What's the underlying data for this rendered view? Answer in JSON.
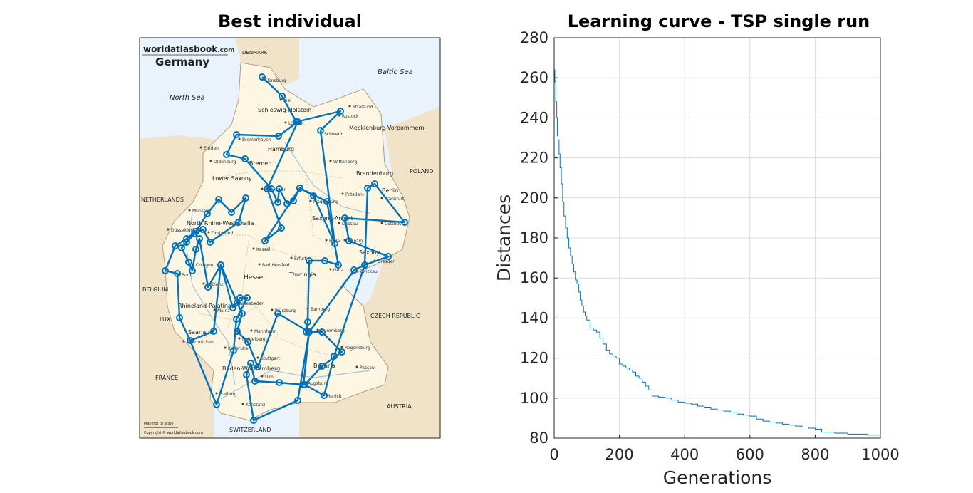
{
  "left_panel": {
    "title": "Best individual",
    "map": {
      "brand": "worldatlasbook.com",
      "brand_bold": "worldatlasbook",
      "brand_suffix": ".com",
      "country": "Germany",
      "footer_scale": "Map not to scale",
      "footer_copyright": "Copyright © worldatlasbook.com",
      "seas": [
        "North Sea",
        "Baltic Sea"
      ],
      "neighbors": [
        "DENMARK",
        "NETHERLANDS",
        "BELGIUM",
        "LUX.",
        "FRANCE",
        "SWITZERLAND",
        "AUSTRIA",
        "CZECH REPUBLIC",
        "POLAND"
      ],
      "states": [
        "Schleswig-Holstein",
        "Mecklenburg-Vorpommern",
        "Hamburg",
        "Bremen",
        "Lower Saxony",
        "Brandenburg",
        "Berlin",
        "Saxony-Anhalt",
        "North Rhine-Westphalia",
        "Hesse",
        "Thuringia",
        "Saxony",
        "Rhineland-Palatinate",
        "Saarland",
        "Baden-Württemberg",
        "Bavaria"
      ],
      "cities": [
        "Flensburg",
        "Kiel",
        "Lübeck",
        "Stralsund",
        "Rostock",
        "Schwerin",
        "Bremerhaven",
        "Emden",
        "Oldenburg",
        "Wittenberg",
        "Hannover",
        "Potsdam",
        "Frankfurt",
        "Magdeburg",
        "Münster",
        "Dessau",
        "Cottbus",
        "Dortmund",
        "Kassel",
        "Halle",
        "Leipzig",
        "Düsseldorf",
        "Dresden",
        "Cologne",
        "Bonn",
        "Erfurt",
        "Gera",
        "Zwickau",
        "Bad Hersfeld",
        "Koblenz",
        "Mainz",
        "Wiesbaden",
        "Würzburg",
        "Bamberg",
        "Nuremberg",
        "Saarbrücken",
        "Mannheim",
        "Heidelberg",
        "Karlsruhe",
        "Regensburg",
        "Stuttgart",
        "Passau",
        "Ulm",
        "Augsburg",
        "Munich",
        "Freiburg",
        "Konstanz"
      ]
    },
    "route_color": "#0072BD"
  },
  "chart_data": {
    "type": "line",
    "title": "Learning curve - TSP single run",
    "xlabel": "Generations",
    "ylabel": "Distances",
    "xlim": [
      0,
      1000
    ],
    "ylim": [
      80,
      280
    ],
    "xticks": [
      0,
      200,
      400,
      600,
      800,
      1000
    ],
    "yticks": [
      80,
      100,
      120,
      140,
      160,
      180,
      200,
      220,
      240,
      260,
      280
    ],
    "grid": true,
    "series": [
      {
        "color": "#0072BD",
        "x": [
          0,
          2,
          5,
          8,
          10,
          12,
          15,
          18,
          22,
          26,
          30,
          35,
          40,
          45,
          50,
          55,
          60,
          65,
          70,
          75,
          80,
          85,
          90,
          95,
          100,
          110,
          120,
          130,
          140,
          150,
          160,
          170,
          180,
          190,
          200,
          210,
          220,
          230,
          240,
          250,
          260,
          270,
          280,
          290,
          300,
          320,
          340,
          360,
          380,
          400,
          420,
          440,
          460,
          480,
          500,
          520,
          540,
          560,
          580,
          600,
          620,
          640,
          660,
          680,
          700,
          720,
          740,
          760,
          780,
          800,
          820,
          840,
          860,
          880,
          900,
          920,
          940,
          960,
          980,
          1000
        ],
        "y": [
          264,
          258,
          248,
          240,
          231,
          229,
          222,
          215,
          207,
          198,
          191,
          185,
          180,
          175,
          171,
          167,
          163,
          159,
          157,
          153,
          149,
          146,
          143,
          141,
          139,
          135,
          134,
          133,
          130,
          127,
          124,
          122,
          121,
          120,
          117,
          116,
          115,
          114,
          113,
          111,
          110,
          108,
          106,
          104,
          101,
          100.5,
          100,
          99,
          98,
          97.5,
          97,
          96,
          95.5,
          94.5,
          94,
          93.5,
          93,
          92,
          91.5,
          91,
          89.5,
          88.5,
          88,
          87.5,
          87,
          86.5,
          86,
          85.5,
          85,
          84.5,
          83,
          83,
          82.5,
          82.5,
          82,
          82,
          82,
          81.5,
          81.5,
          81
        ]
      }
    ]
  }
}
